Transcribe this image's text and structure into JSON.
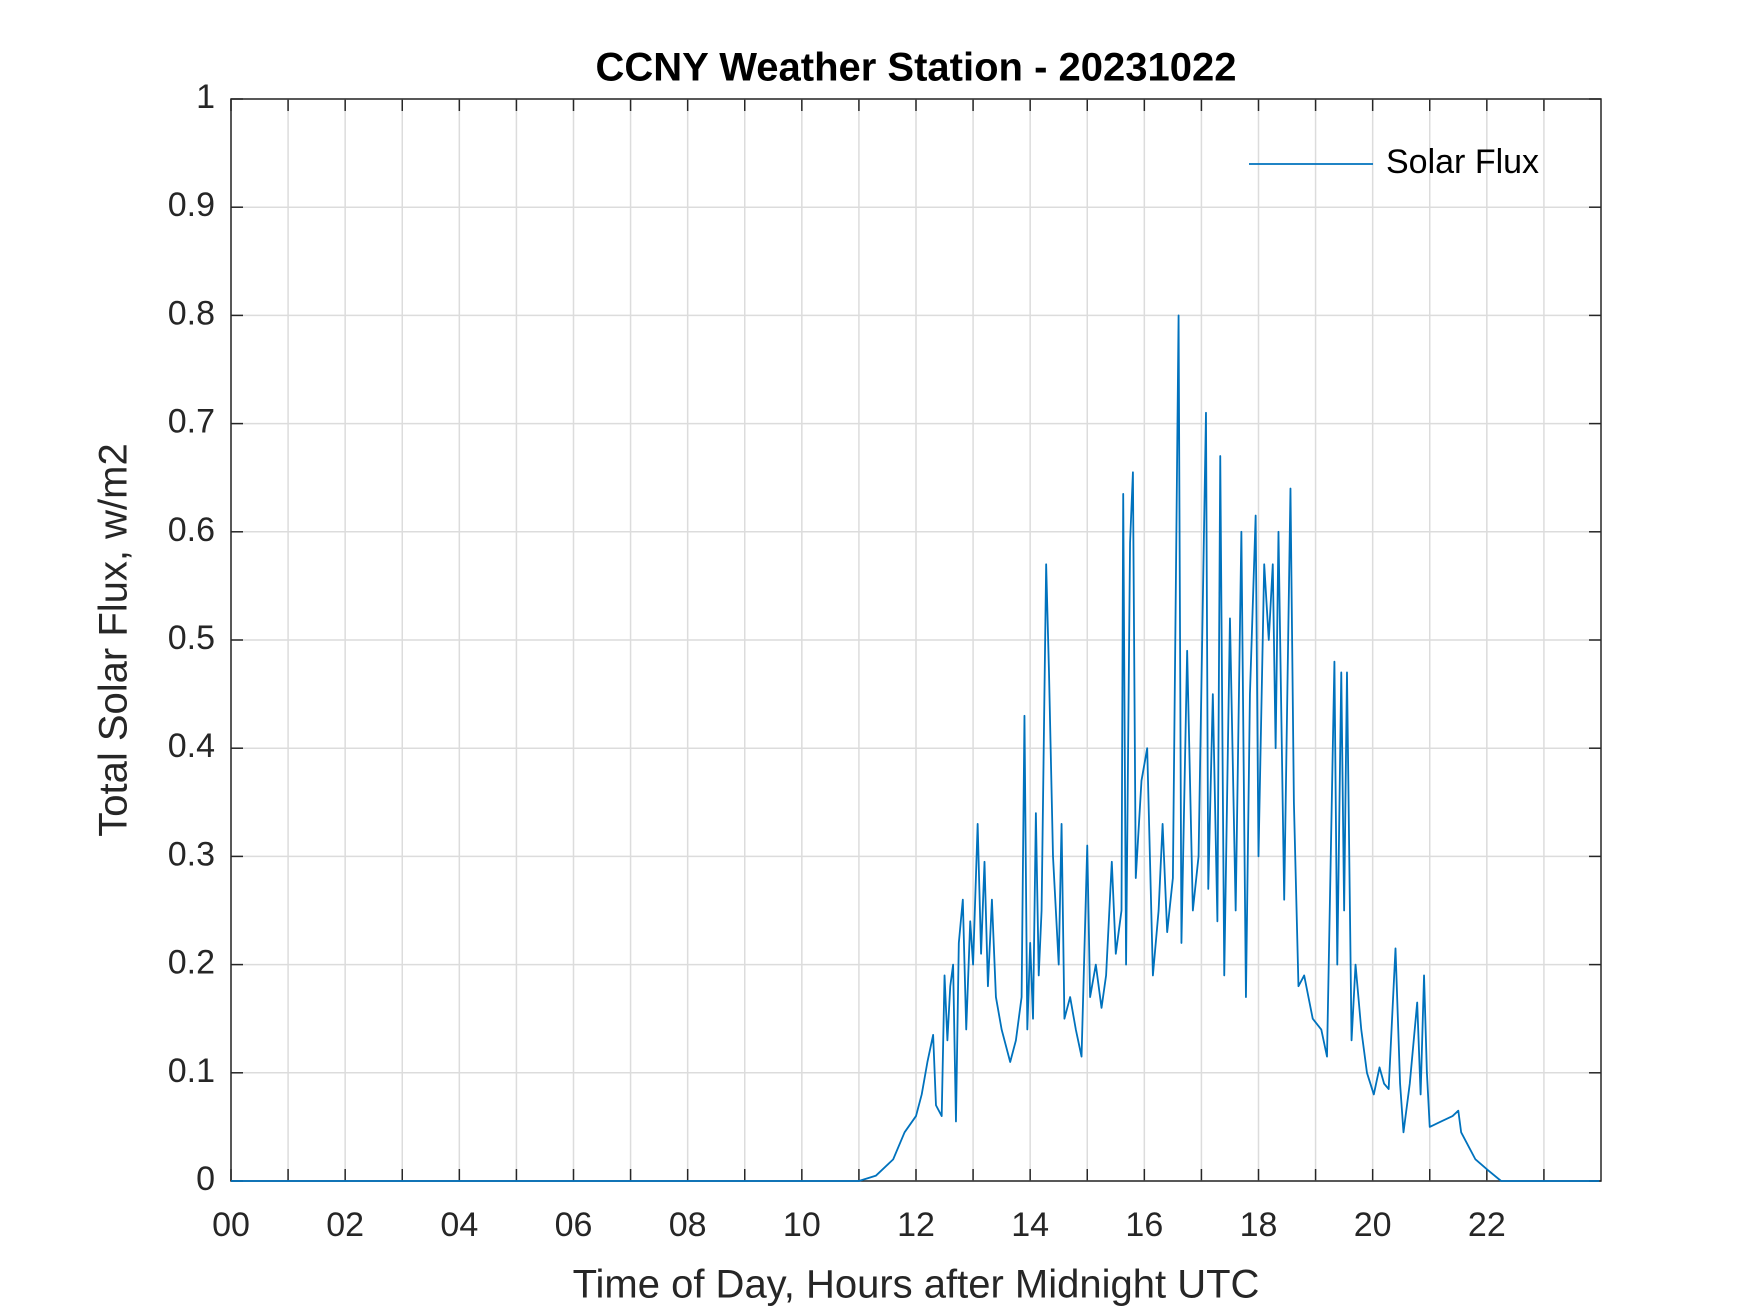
{
  "chart_data": {
    "type": "line",
    "title": "CCNY Weather Station - 20231022",
    "x_label": "Time of Day, Hours after Midnight UTC",
    "y_label": "Total Solar Flux, w/m2",
    "legend": "northeast",
    "grid": true,
    "xlim": [
      0,
      24
    ],
    "ylim": [
      0,
      1
    ],
    "xticks": [
      {
        "value": 0,
        "label": "00"
      },
      {
        "value": 2,
        "label": "02"
      },
      {
        "value": 4,
        "label": "04"
      },
      {
        "value": 6,
        "label": "06"
      },
      {
        "value": 8,
        "label": "08"
      },
      10,
      12,
      14,
      16,
      18,
      20,
      22
    ],
    "xminorticks": [
      1,
      3,
      5,
      7,
      9,
      11,
      13,
      15,
      17,
      19,
      21,
      23
    ],
    "yticks": [
      0,
      0.1,
      0.2,
      0.3,
      0.4,
      0.5,
      0.6,
      0.7,
      0.8,
      0.9,
      1
    ],
    "x": [
      0,
      11,
      11.3,
      11.6,
      11.8,
      12,
      12.1,
      12.2,
      12.3,
      12.35,
      12.45,
      12.5,
      12.55,
      12.6,
      12.65,
      12.7,
      12.75,
      12.82,
      12.88,
      12.95,
      13.0,
      13.08,
      13.14,
      13.2,
      13.26,
      13.33,
      13.4,
      13.5,
      13.65,
      13.75,
      13.85,
      13.9,
      13.95,
      14.0,
      14.05,
      14.1,
      14.15,
      14.2,
      14.28,
      14.33,
      14.4,
      14.5,
      14.55,
      14.6,
      14.7,
      14.8,
      14.9,
      15.0,
      15.05,
      15.15,
      15.25,
      15.33,
      15.43,
      15.5,
      15.6,
      15.63,
      15.68,
      15.75,
      15.8,
      15.85,
      15.95,
      16.05,
      16.15,
      16.25,
      16.32,
      16.4,
      16.5,
      16.6,
      16.65,
      16.75,
      16.85,
      16.95,
      17.08,
      17.12,
      17.2,
      17.28,
      17.33,
      17.4,
      17.5,
      17.6,
      17.7,
      17.78,
      17.85,
      17.95,
      18.0,
      18.1,
      18.18,
      18.25,
      18.3,
      18.35,
      18.45,
      18.56,
      18.62,
      18.7,
      18.8,
      18.95,
      19.1,
      19.2,
      19.33,
      19.38,
      19.45,
      19.5,
      19.55,
      19.63,
      19.7,
      19.8,
      19.9,
      20.02,
      20.12,
      20.2,
      20.28,
      20.4,
      20.48,
      20.54,
      20.65,
      20.78,
      20.84,
      20.9,
      20.95,
      21.0,
      21.2,
      21.4,
      21.5,
      21.55,
      21.7,
      21.8,
      22.02,
      22.25,
      23.97
    ],
    "series": [
      {
        "name": "Solar Flux",
        "color": "#0072bd",
        "values": [
          0,
          0,
          0.005,
          0.02,
          0.045,
          0.06,
          0.08,
          0.11,
          0.135,
          0.07,
          0.06,
          0.19,
          0.13,
          0.18,
          0.2,
          0.055,
          0.22,
          0.26,
          0.14,
          0.24,
          0.2,
          0.33,
          0.21,
          0.295,
          0.18,
          0.26,
          0.17,
          0.14,
          0.11,
          0.13,
          0.17,
          0.43,
          0.14,
          0.22,
          0.15,
          0.34,
          0.19,
          0.25,
          0.57,
          0.47,
          0.3,
          0.2,
          0.33,
          0.15,
          0.17,
          0.14,
          0.115,
          0.31,
          0.17,
          0.2,
          0.16,
          0.19,
          0.295,
          0.21,
          0.25,
          0.635,
          0.2,
          0.59,
          0.655,
          0.28,
          0.37,
          0.4,
          0.19,
          0.25,
          0.33,
          0.23,
          0.28,
          0.8,
          0.22,
          0.49,
          0.25,
          0.3,
          0.71,
          0.27,
          0.45,
          0.24,
          0.67,
          0.19,
          0.52,
          0.25,
          0.6,
          0.17,
          0.45,
          0.615,
          0.3,
          0.57,
          0.5,
          0.57,
          0.4,
          0.6,
          0.26,
          0.64,
          0.35,
          0.18,
          0.19,
          0.15,
          0.14,
          0.115,
          0.48,
          0.2,
          0.47,
          0.25,
          0.47,
          0.13,
          0.2,
          0.14,
          0.1,
          0.08,
          0.105,
          0.09,
          0.085,
          0.215,
          0.09,
          0.045,
          0.09,
          0.165,
          0.08,
          0.19,
          0.1,
          0.05,
          0.055,
          0.06,
          0.065,
          0.045,
          0.03,
          0.02,
          0.01,
          0,
          0
        ]
      }
    ]
  }
}
